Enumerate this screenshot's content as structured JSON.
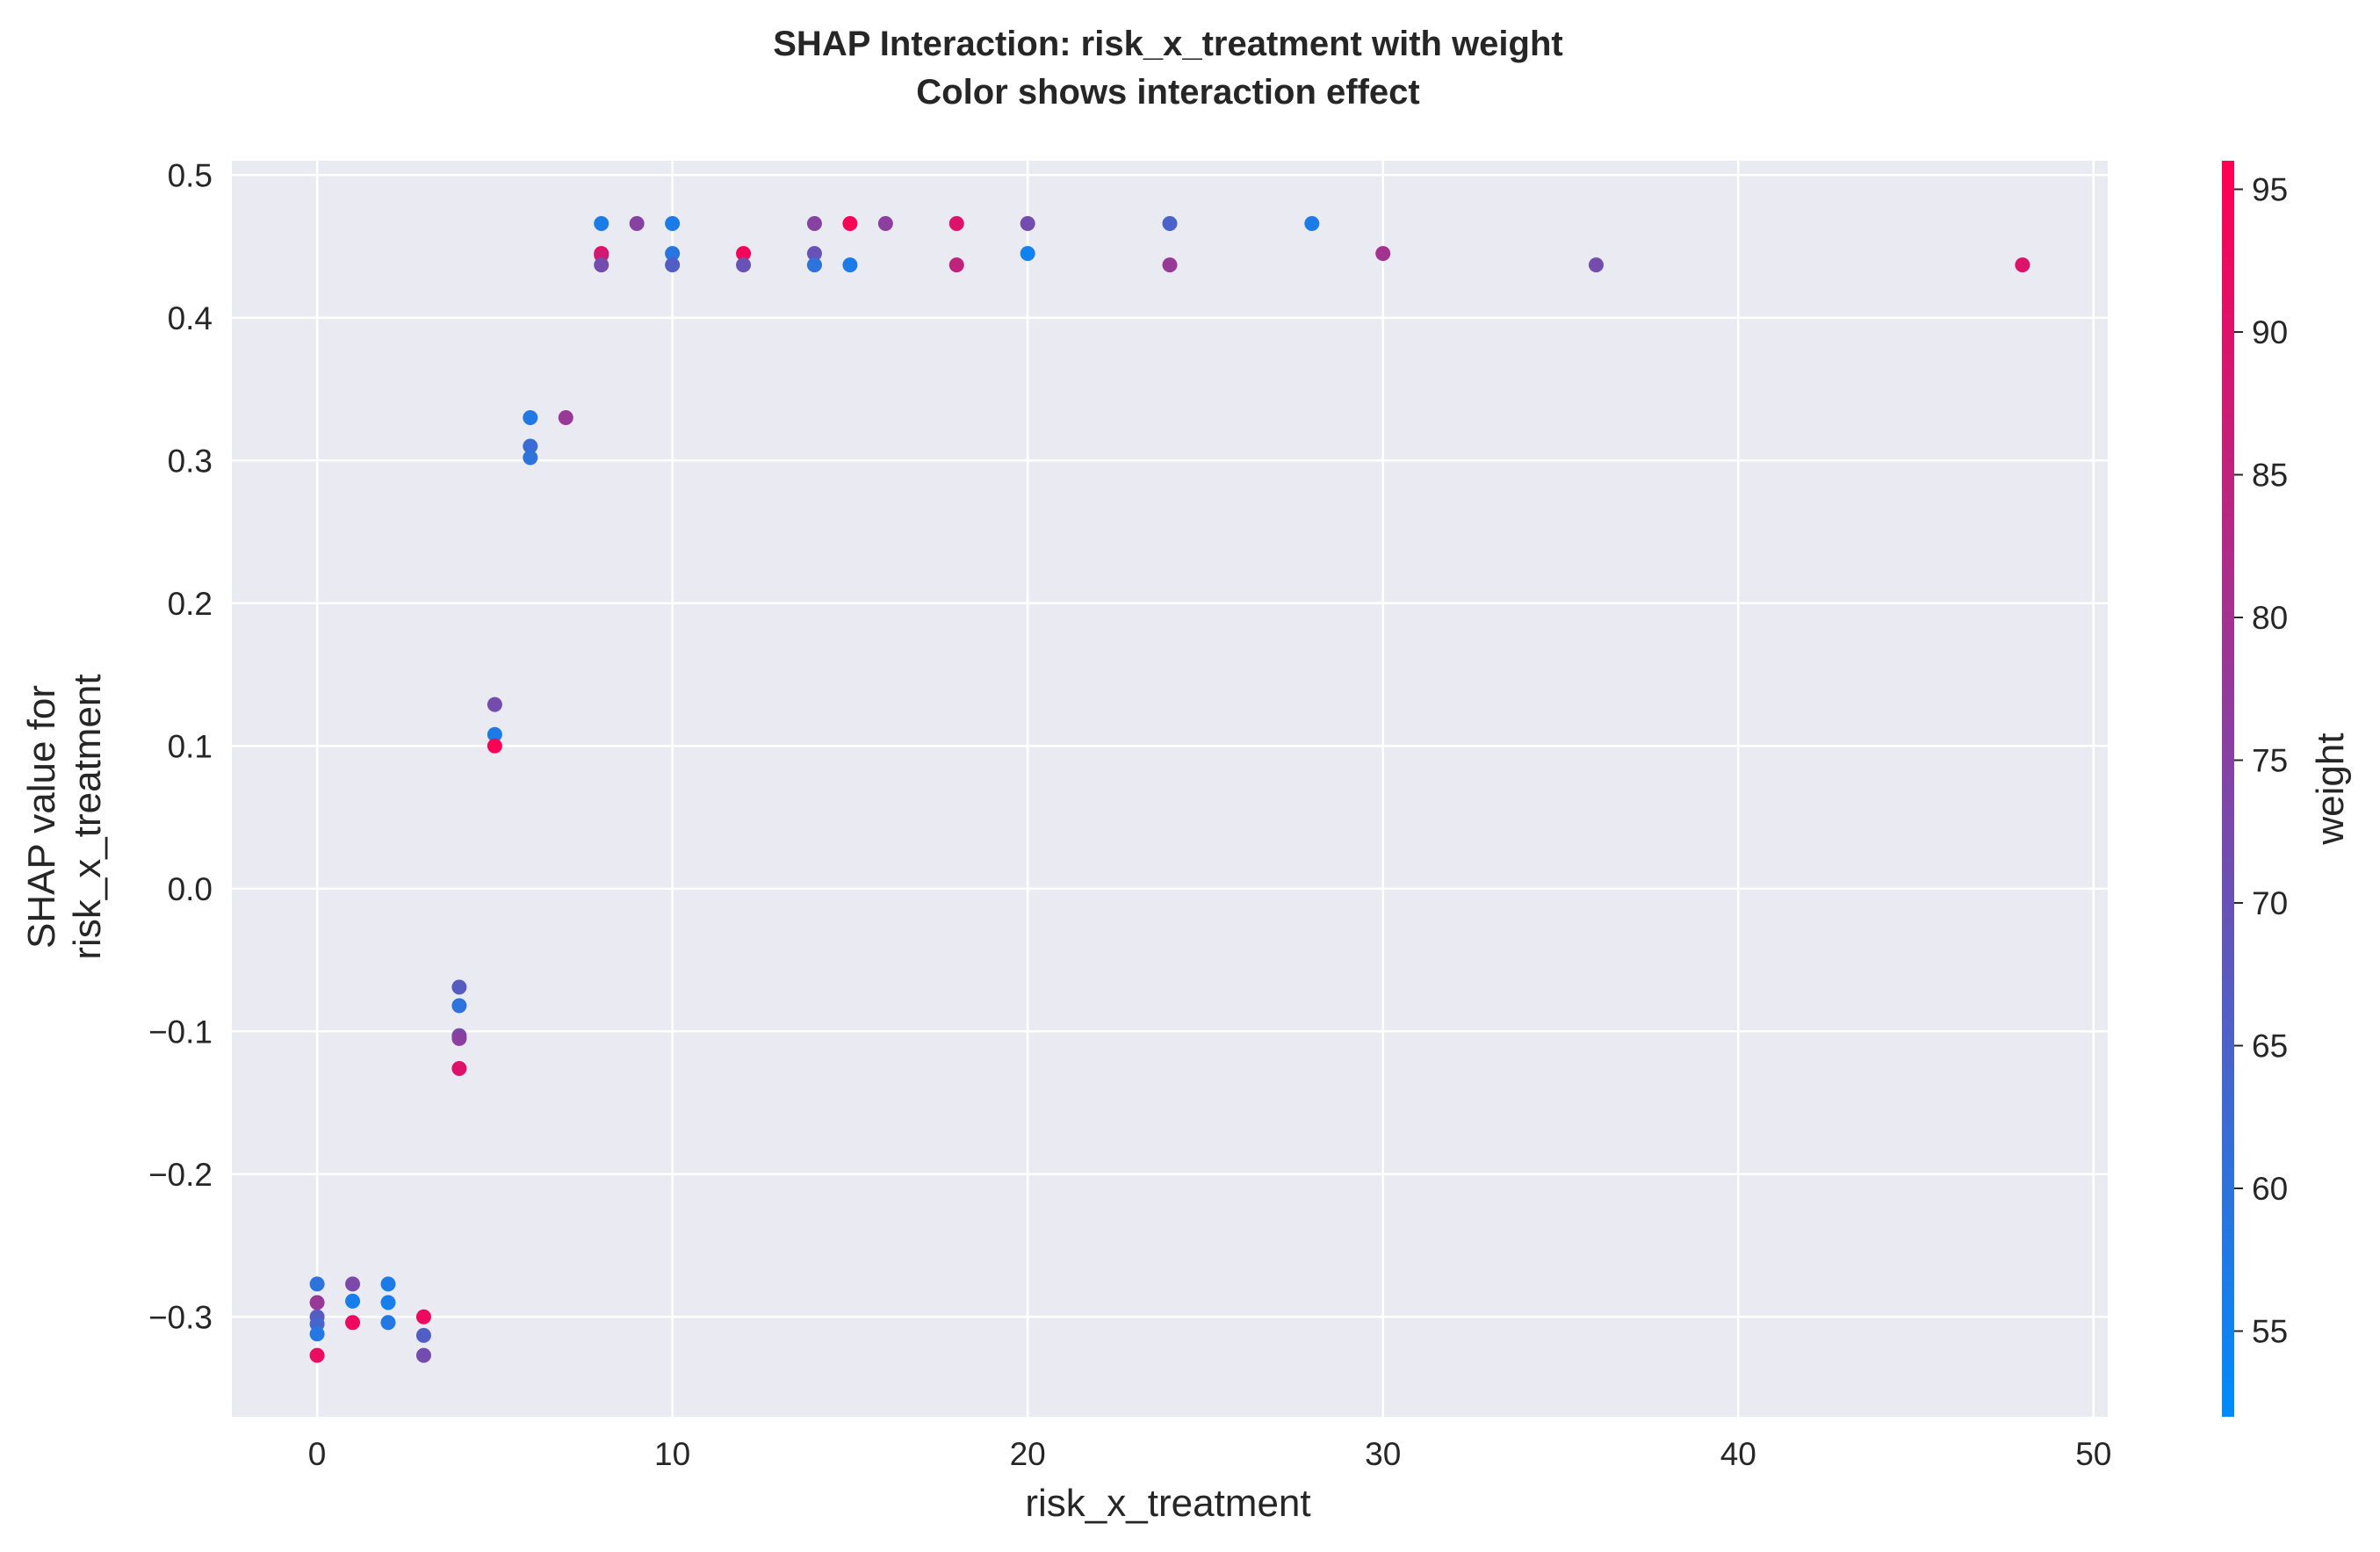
{
  "chart_data": {
    "type": "scatter",
    "title": "SHAP Interaction: risk_x_treatment with weight",
    "subtitle": "Color shows interaction effect",
    "xlabel": "risk_x_treatment",
    "ylabel_lines": [
      "SHAP value for",
      "risk_x_treatment"
    ],
    "xlim": [
      -2.4,
      50.4
    ],
    "ylim": [
      -0.37,
      0.51
    ],
    "xticks": [
      0,
      10,
      20,
      30,
      40,
      50
    ],
    "xtick_labels": [
      "0",
      "10",
      "20",
      "30",
      "40",
      "50"
    ],
    "yticks": [
      -0.3,
      -0.2,
      -0.1,
      0.0,
      0.1,
      0.2,
      0.3,
      0.4,
      0.5
    ],
    "ytick_labels": [
      "−0.3",
      "−0.2",
      "−0.1",
      "0.0",
      "0.1",
      "0.2",
      "0.3",
      "0.4",
      "0.5"
    ],
    "grid": true,
    "colorbar": {
      "label": "weight",
      "range": [
        52,
        96
      ],
      "ticks": [
        55,
        60,
        65,
        70,
        75,
        80,
        85,
        90,
        95
      ],
      "tick_labels": [
        "55",
        "60",
        "65",
        "70",
        "75",
        "80",
        "85",
        "90",
        "95"
      ],
      "colormap": [
        "#008bfb",
        "#ff0052"
      ]
    },
    "background_color": "#eaeaf2",
    "grid_color": "#ffffff",
    "points": [
      {
        "x": 0,
        "y": -0.277,
        "c": 60
      },
      {
        "x": 0,
        "y": -0.29,
        "c": 78
      },
      {
        "x": 0,
        "y": -0.3,
        "c": 67
      },
      {
        "x": 0,
        "y": -0.305,
        "c": 64
      },
      {
        "x": 0,
        "y": -0.312,
        "c": 58
      },
      {
        "x": 0,
        "y": -0.327,
        "c": 92
      },
      {
        "x": 1,
        "y": -0.277,
        "c": 73
      },
      {
        "x": 1,
        "y": -0.289,
        "c": 56
      },
      {
        "x": 1,
        "y": -0.304,
        "c": 93
      },
      {
        "x": 2,
        "y": -0.277,
        "c": 57
      },
      {
        "x": 2,
        "y": -0.29,
        "c": 56
      },
      {
        "x": 2,
        "y": -0.304,
        "c": 58
      },
      {
        "x": 3,
        "y": -0.3,
        "c": 93
      },
      {
        "x": 3,
        "y": -0.313,
        "c": 66
      },
      {
        "x": 3,
        "y": -0.327,
        "c": 72
      },
      {
        "x": 4,
        "y": -0.069,
        "c": 67
      },
      {
        "x": 4,
        "y": -0.082,
        "c": 60
      },
      {
        "x": 4,
        "y": -0.103,
        "c": 72
      },
      {
        "x": 4,
        "y": -0.105,
        "c": 76
      },
      {
        "x": 4,
        "y": -0.126,
        "c": 90
      },
      {
        "x": 5,
        "y": 0.129,
        "c": 72
      },
      {
        "x": 5,
        "y": 0.108,
        "c": 57
      },
      {
        "x": 5,
        "y": 0.1,
        "c": 95
      },
      {
        "x": 6,
        "y": 0.33,
        "c": 58
      },
      {
        "x": 6,
        "y": 0.31,
        "c": 62
      },
      {
        "x": 6,
        "y": 0.302,
        "c": 60
      },
      {
        "x": 7,
        "y": 0.33,
        "c": 78
      },
      {
        "x": 8,
        "y": 0.466,
        "c": 57
      },
      {
        "x": 8,
        "y": 0.445,
        "c": 95
      },
      {
        "x": 8,
        "y": 0.444,
        "c": 88
      },
      {
        "x": 8,
        "y": 0.437,
        "c": 72
      },
      {
        "x": 9,
        "y": 0.466,
        "c": 75
      },
      {
        "x": 10,
        "y": 0.466,
        "c": 57
      },
      {
        "x": 10,
        "y": 0.445,
        "c": 59
      },
      {
        "x": 10,
        "y": 0.437,
        "c": 66
      },
      {
        "x": 12,
        "y": 0.445,
        "c": 94
      },
      {
        "x": 12,
        "y": 0.437,
        "c": 70
      },
      {
        "x": 14,
        "y": 0.466,
        "c": 75
      },
      {
        "x": 14,
        "y": 0.445,
        "c": 70
      },
      {
        "x": 14,
        "y": 0.437,
        "c": 60
      },
      {
        "x": 15,
        "y": 0.466,
        "c": 95
      },
      {
        "x": 15,
        "y": 0.437,
        "c": 57
      },
      {
        "x": 16,
        "y": 0.466,
        "c": 76
      },
      {
        "x": 18,
        "y": 0.466,
        "c": 90
      },
      {
        "x": 18,
        "y": 0.437,
        "c": 85
      },
      {
        "x": 20,
        "y": 0.466,
        "c": 72
      },
      {
        "x": 20,
        "y": 0.445,
        "c": 55
      },
      {
        "x": 24,
        "y": 0.466,
        "c": 65
      },
      {
        "x": 24,
        "y": 0.437,
        "c": 78
      },
      {
        "x": 28,
        "y": 0.466,
        "c": 57
      },
      {
        "x": 30,
        "y": 0.445,
        "c": 80
      },
      {
        "x": 36,
        "y": 0.437,
        "c": 72
      },
      {
        "x": 48,
        "y": 0.437,
        "c": 90
      }
    ]
  }
}
